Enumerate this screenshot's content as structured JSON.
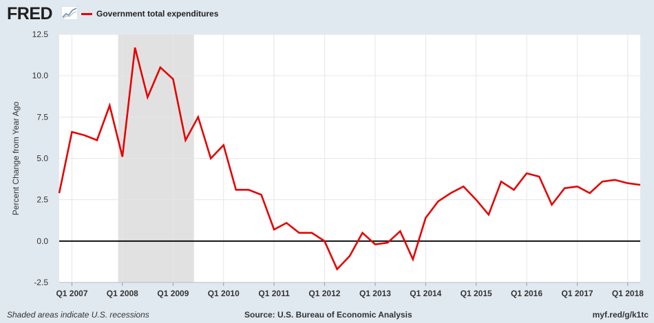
{
  "header": {
    "logo_text": "FRED",
    "logo_icon": "fred-graph-icon",
    "legend_label": "Government total expenditures",
    "legend_color": "#e60000"
  },
  "footer": {
    "left": "Shaded areas indicate U.S. recessions",
    "source": "Source: U.S. Bureau of Economic Analysis",
    "link": "myf.red/g/k1tc"
  },
  "chart_data": {
    "type": "line",
    "title": "",
    "xlabel": "",
    "ylabel": "Percent Change from Year Ago",
    "ylim": [
      -2.5,
      12.5
    ],
    "yticks": [
      -2.5,
      0.0,
      2.5,
      5.0,
      7.5,
      10.0,
      12.5
    ],
    "ytick_labels": [
      "-2.5",
      "0.0",
      "2.5",
      "5.0",
      "7.5",
      "10.0",
      "12.5"
    ],
    "xlim": [
      "2006-10-01",
      "2018-04-01"
    ],
    "xticks": [
      {
        "date": "2007-01-01",
        "label": "Q1 2007"
      },
      {
        "date": "2008-01-01",
        "label": "Q1 2008"
      },
      {
        "date": "2009-01-01",
        "label": "Q1 2009"
      },
      {
        "date": "2010-01-01",
        "label": "Q1 2010"
      },
      {
        "date": "2011-01-01",
        "label": "Q1 2011"
      },
      {
        "date": "2012-01-01",
        "label": "Q1 2012"
      },
      {
        "date": "2013-01-01",
        "label": "Q1 2013"
      },
      {
        "date": "2014-01-01",
        "label": "Q1 2014"
      },
      {
        "date": "2015-01-01",
        "label": "Q1 2015"
      },
      {
        "date": "2016-01-01",
        "label": "Q1 2016"
      },
      {
        "date": "2017-01-01",
        "label": "Q1 2017"
      },
      {
        "date": "2018-01-01",
        "label": "Q1 2018"
      }
    ],
    "grid": true,
    "recessions": [
      {
        "start": "2007-12-01",
        "end": "2009-06-01"
      }
    ],
    "recession_color": "#e1e1e1",
    "zero_line": true,
    "series": [
      {
        "color": "#e60000",
        "x": [
          "2006-10-01",
          "2007-01-01",
          "2007-04-01",
          "2007-07-01",
          "2007-10-01",
          "2008-01-01",
          "2008-04-01",
          "2008-07-01",
          "2008-10-01",
          "2009-01-01",
          "2009-04-01",
          "2009-07-01",
          "2009-10-01",
          "2010-01-01",
          "2010-04-01",
          "2010-07-01",
          "2010-10-01",
          "2011-01-01",
          "2011-04-01",
          "2011-07-01",
          "2011-10-01",
          "2012-01-01",
          "2012-04-01",
          "2012-07-01",
          "2012-10-01",
          "2013-01-01",
          "2013-04-01",
          "2013-07-01",
          "2013-10-01",
          "2014-01-01",
          "2014-04-01",
          "2014-07-01",
          "2014-10-01",
          "2015-01-01",
          "2015-04-01",
          "2015-07-01",
          "2015-10-01",
          "2016-01-01",
          "2016-04-01",
          "2016-07-01",
          "2016-10-01",
          "2017-01-01",
          "2017-04-01",
          "2017-07-01",
          "2017-10-01",
          "2018-01-01",
          "2018-04-01"
        ],
        "values": [
          2.9,
          6.6,
          6.4,
          6.1,
          8.2,
          5.1,
          11.7,
          8.7,
          10.5,
          9.8,
          6.1,
          7.5,
          5.0,
          5.8,
          3.1,
          3.1,
          2.8,
          0.7,
          1.1,
          0.5,
          0.5,
          0.0,
          -1.7,
          -0.9,
          0.5,
          -0.2,
          -0.1,
          0.6,
          -1.1,
          1.4,
          2.4,
          2.9,
          3.3,
          2.5,
          1.6,
          3.6,
          3.1,
          4.1,
          3.9,
          2.2,
          3.2,
          3.3,
          2.9,
          3.6,
          3.7,
          3.5,
          3.4
        ]
      }
    ]
  }
}
